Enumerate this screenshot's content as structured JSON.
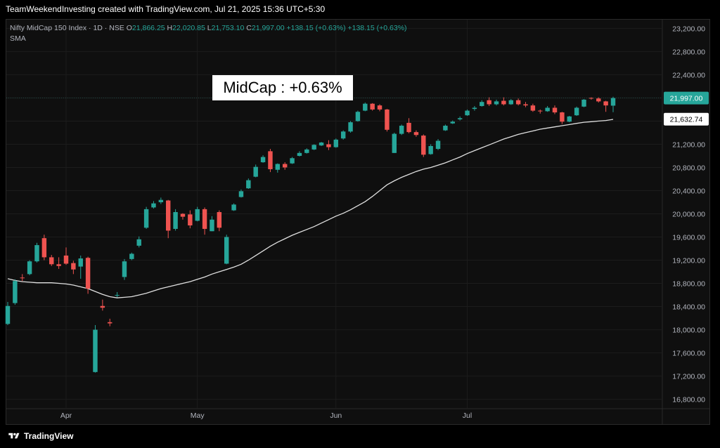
{
  "header": {
    "attribution": "TeamWeekendInvesting created with TradingView.com, Jul 21, 2025 15:36 UTC+5:30"
  },
  "legend": {
    "symbol": "Nifty MidCap 150 Index · 1D · NSE",
    "open_label": "O",
    "open": "21,866.25",
    "high_label": "H",
    "high": "22,020.85",
    "low_label": "L",
    "low": "21,753.10",
    "close_label": "C",
    "close": "21,997.00",
    "change": "+138.15 (+0.63%)",
    "change2": "+138.15 (+0.63%)",
    "indicator": "SMA"
  },
  "annotation": "MidCap : +0.63%",
  "footer": {
    "brand": "TradingView"
  },
  "colors": {
    "up": "#26a69a",
    "down": "#ef5350",
    "sma": "#e0e0e0",
    "bg": "#0f0f0f",
    "axis_text": "#b2b5be"
  },
  "chart_data": {
    "type": "candlestick",
    "title": "Nifty MidCap 150 Index · 1D · NSE",
    "ylim": [
      16650,
      23350
    ],
    "y_ticks": [
      "23,200.00",
      "22,800.00",
      "22,400.00",
      "22,000.00",
      "21,600.00",
      "21,200.00",
      "20,800.00",
      "20,400.00",
      "20,000.00",
      "19,600.00",
      "19,200.00",
      "18,800.00",
      "18,400.00",
      "18,000.00",
      "17,600.00",
      "17,200.00",
      "16,800.00"
    ],
    "y_tick_values": [
      23200,
      22800,
      22400,
      22000,
      21600,
      21200,
      20800,
      20400,
      20000,
      19600,
      19200,
      18800,
      18400,
      18000,
      17600,
      17200,
      16800
    ],
    "x_ticks": [
      {
        "label": "Apr",
        "index": 8
      },
      {
        "label": "May",
        "index": 26
      },
      {
        "label": "Jun",
        "index": 45
      },
      {
        "label": "Jul",
        "index": 63
      }
    ],
    "last_price": {
      "label": "21,997.00",
      "value": 21997
    },
    "sma_last": {
      "label": "21,632.74",
      "value": 21632.74
    },
    "candles": [
      [
        18100,
        18480,
        18080,
        18410
      ],
      [
        18460,
        18870,
        18430,
        18840
      ],
      [
        18900,
        18960,
        18840,
        18890
      ],
      [
        18960,
        19200,
        18940,
        19180
      ],
      [
        19180,
        19500,
        19160,
        19460
      ],
      [
        19580,
        19640,
        19200,
        19250
      ],
      [
        19250,
        19290,
        19100,
        19130
      ],
      [
        19130,
        19250,
        19050,
        19100
      ],
      [
        19280,
        19420,
        19120,
        19140
      ],
      [
        19150,
        19190,
        18960,
        19040
      ],
      [
        19090,
        19280,
        18880,
        19230
      ],
      [
        19240,
        19260,
        18620,
        18710
      ],
      [
        17270,
        18080,
        17260,
        18000
      ],
      [
        18410,
        18520,
        18330,
        18380
      ],
      [
        18130,
        18190,
        18060,
        18110
      ],
      [
        18590,
        18650,
        18560,
        18600
      ],
      [
        18910,
        19220,
        18860,
        19180
      ],
      [
        19220,
        19330,
        19200,
        19310
      ],
      [
        19450,
        19610,
        19420,
        19560
      ],
      [
        19760,
        20120,
        19740,
        20080
      ],
      [
        20110,
        20220,
        20090,
        20180
      ],
      [
        20200,
        20280,
        20170,
        20240
      ],
      [
        20230,
        20240,
        19580,
        19710
      ],
      [
        19740,
        20080,
        19710,
        20030
      ],
      [
        20000,
        20010,
        19900,
        19950
      ],
      [
        19990,
        20060,
        19750,
        19800
      ],
      [
        19880,
        20120,
        19870,
        20080
      ],
      [
        20080,
        20110,
        19640,
        19740
      ],
      [
        19700,
        19960,
        19700,
        19900
      ],
      [
        20030,
        20060,
        19700,
        19760
      ],
      [
        19140,
        19640,
        19130,
        19600
      ],
      [
        20060,
        20180,
        20050,
        20160
      ],
      [
        20290,
        20420,
        20280,
        20390
      ],
      [
        20440,
        20610,
        20430,
        20580
      ],
      [
        20640,
        20850,
        20630,
        20810
      ],
      [
        20890,
        21010,
        20880,
        20980
      ],
      [
        21080,
        21120,
        20720,
        20770
      ],
      [
        20760,
        20870,
        20710,
        20860
      ],
      [
        20860,
        20890,
        20760,
        20800
      ],
      [
        20870,
        20980,
        20860,
        20960
      ],
      [
        21000,
        21080,
        20990,
        21050
      ],
      [
        21050,
        21130,
        21040,
        21110
      ],
      [
        21110,
        21200,
        21100,
        21190
      ],
      [
        21180,
        21240,
        21170,
        21230
      ],
      [
        21200,
        21270,
        21100,
        21150
      ],
      [
        21150,
        21300,
        21140,
        21280
      ],
      [
        21300,
        21440,
        21280,
        21420
      ],
      [
        21420,
        21600,
        21400,
        21580
      ],
      [
        21600,
        21780,
        21590,
        21760
      ],
      [
        21780,
        21920,
        21770,
        21900
      ],
      [
        21900,
        21910,
        21780,
        21800
      ],
      [
        21870,
        21890,
        21770,
        21800
      ],
      [
        21800,
        21810,
        21420,
        21450
      ],
      [
        21050,
        21400,
        21050,
        21380
      ],
      [
        21380,
        21540,
        21360,
        21520
      ],
      [
        21570,
        21650,
        21390,
        21410
      ],
      [
        21410,
        21440,
        21330,
        21360
      ],
      [
        21350,
        21370,
        20980,
        21020
      ],
      [
        21030,
        21200,
        21020,
        21170
      ],
      [
        21120,
        21290,
        21100,
        21260
      ],
      [
        21440,
        21540,
        21430,
        21520
      ],
      [
        21560,
        21610,
        21550,
        21590
      ],
      [
        21630,
        21680,
        21610,
        21650
      ],
      [
        21700,
        21800,
        21690,
        21780
      ],
      [
        21810,
        21860,
        21780,
        21830
      ],
      [
        21860,
        21960,
        21850,
        21930
      ],
      [
        21960,
        22010,
        21860,
        21890
      ],
      [
        21890,
        21970,
        21870,
        21940
      ],
      [
        21950,
        22010,
        21870,
        21890
      ],
      [
        21890,
        21980,
        21880,
        21960
      ],
      [
        21960,
        21990,
        21870,
        21890
      ],
      [
        21890,
        21930,
        21840,
        21870
      ],
      [
        21870,
        21900,
        21760,
        21780
      ],
      [
        21780,
        21800,
        21730,
        21770
      ],
      [
        21770,
        21860,
        21760,
        21830
      ],
      [
        21830,
        21870,
        21720,
        21750
      ],
      [
        21750,
        21760,
        21550,
        21590
      ],
      [
        21590,
        21690,
        21580,
        21680
      ],
      [
        21700,
        21850,
        21690,
        21830
      ],
      [
        21850,
        21980,
        21840,
        21970
      ],
      [
        22000,
        22010,
        21970,
        21990
      ],
      [
        21990,
        22010,
        21920,
        21940
      ],
      [
        21940,
        21950,
        21760,
        21870
      ],
      [
        21866.25,
        22020.85,
        21753.1,
        21997
      ]
    ],
    "sma": [
      18880,
      18850,
      18830,
      18820,
      18810,
      18810,
      18810,
      18800,
      18790,
      18770,
      18740,
      18710,
      18660,
      18610,
      18570,
      18550,
      18560,
      18570,
      18600,
      18630,
      18670,
      18710,
      18740,
      18770,
      18800,
      18830,
      18870,
      18910,
      18960,
      19000,
      19040,
      19080,
      19130,
      19200,
      19280,
      19360,
      19440,
      19510,
      19570,
      19630,
      19680,
      19730,
      19780,
      19840,
      19900,
      19960,
      20010,
      20070,
      20140,
      20210,
      20300,
      20400,
      20500,
      20570,
      20630,
      20680,
      20730,
      20770,
      20800,
      20840,
      20880,
      20930,
      20980,
      21040,
      21090,
      21140,
      21190,
      21240,
      21290,
      21330,
      21370,
      21400,
      21430,
      21460,
      21480,
      21500,
      21520,
      21540,
      21560,
      21580,
      21590,
      21600,
      21610,
      21630
    ]
  }
}
